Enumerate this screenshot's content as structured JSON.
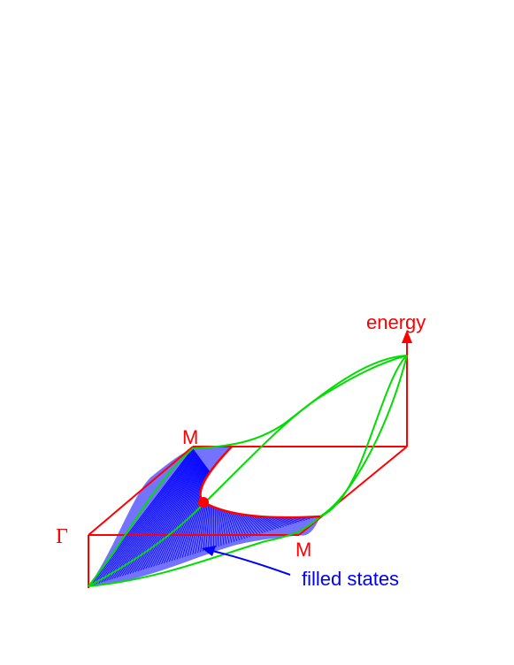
{
  "labels": {
    "energy": "energy",
    "gamma": "Γ",
    "m_top": "M",
    "m_bottom": "M",
    "filled_states": "filled states"
  },
  "colors": {
    "frame": "#ff0000",
    "band": "#00ee00",
    "filled": "#0000ff",
    "fermi_point": "#ff0000",
    "background": "#ffffff"
  }
}
